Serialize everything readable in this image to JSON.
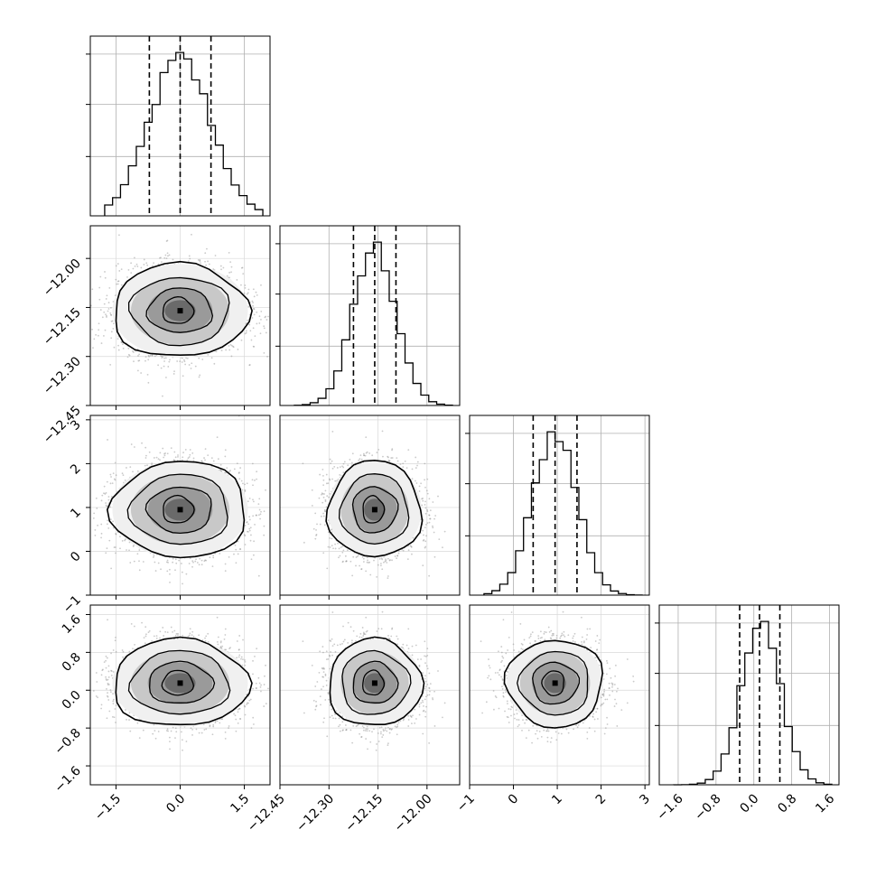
{
  "chart_data": {
    "type": "corner",
    "title": "",
    "colors": {
      "line": "#000000",
      "grid": "#b0b0b0",
      "scatter": "#8a8a8a",
      "quantile": "#000000"
    },
    "grid": true,
    "parameters": [
      {
        "id": "p0",
        "label": "",
        "mean": 0.0,
        "sd": 0.72,
        "range": [
          -2.1,
          2.1
        ],
        "ticks": [
          "−1.5",
          "0.0",
          "1.5"
        ],
        "tick_values": [
          -1.5,
          0.0,
          1.5
        ],
        "quantiles": [
          -0.72,
          0.0,
          0.72
        ]
      },
      {
        "id": "p1",
        "label": "",
        "mean": -12.16,
        "sd": 0.065,
        "range": [
          -12.45,
          -11.9
        ],
        "ticks": [
          "−12.45",
          "−12.30",
          "−12.15",
          "−12.00"
        ],
        "tick_values": [
          -12.45,
          -12.3,
          -12.15,
          -12.0
        ],
        "quantiles": [
          -12.225,
          -12.16,
          -12.095
        ]
      },
      {
        "id": "p2",
        "label": "",
        "mean": 0.95,
        "sd": 0.5,
        "range": [
          -1.0,
          3.1
        ],
        "ticks": [
          "−1",
          "0",
          "1",
          "2",
          "3"
        ],
        "tick_values": [
          -1,
          0,
          1,
          2,
          3
        ],
        "quantiles": [
          0.45,
          0.95,
          1.45
        ]
      },
      {
        "id": "p3",
        "label": "",
        "mean": 0.15,
        "sd": 0.42,
        "range": [
          -2.0,
          1.8
        ],
        "ticks": [
          "−1.6",
          "−0.8",
          "0.0",
          "0.8",
          "1.6"
        ],
        "tick_values": [
          -1.6,
          -0.8,
          0.0,
          0.8,
          1.6
        ],
        "quantiles": [
          -0.3,
          0.12,
          0.55
        ]
      }
    ],
    "histogram_bins": 20,
    "contour_levels": [
      0.5,
      1.0,
      1.5,
      2.0
    ],
    "sample_count": 3000
  }
}
